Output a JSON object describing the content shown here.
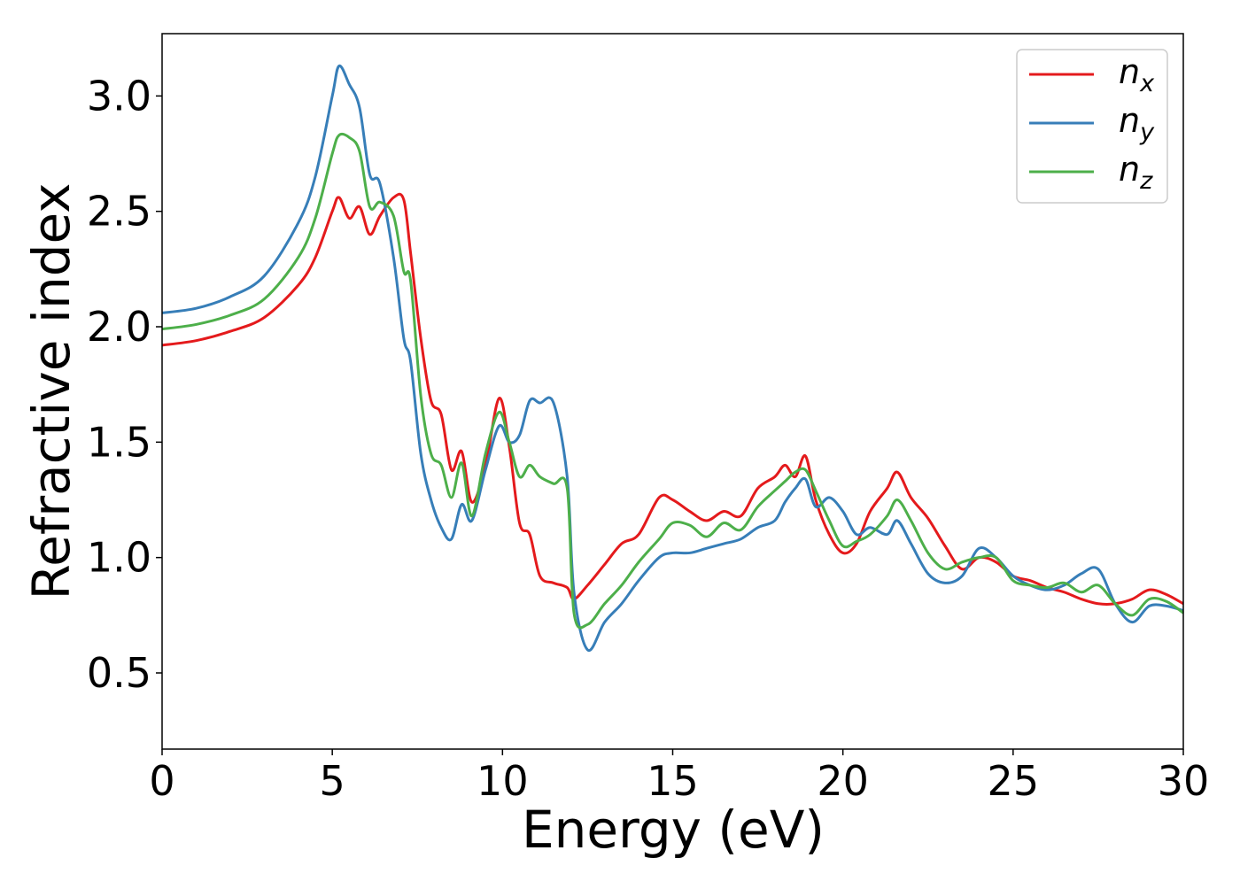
{
  "chart_data": {
    "type": "line",
    "xlabel": "Energy (eV)",
    "ylabel": "Refractive index",
    "xlim": [
      0,
      30
    ],
    "ylim": [
      0.17,
      3.27
    ],
    "xticks": [
      0,
      5,
      10,
      15,
      20,
      25,
      30
    ],
    "xtick_labels": [
      "0",
      "5",
      "10",
      "15",
      "20",
      "25",
      "30"
    ],
    "yticks": [
      0.5,
      1.0,
      1.5,
      2.0,
      2.5,
      3.0
    ],
    "ytick_labels": [
      "0.5",
      "1.0",
      "1.5",
      "2.0",
      "2.5",
      "3.0"
    ],
    "grid": false,
    "legend_position": "top-right",
    "series": [
      {
        "name": "n_x",
        "base": "n",
        "sub": "x",
        "color": "#e41a1c",
        "x": [
          0,
          1,
          2,
          3,
          4,
          4.5,
          5.0,
          5.2,
          5.5,
          5.8,
          6.1,
          6.4,
          6.8,
          7.1,
          7.3,
          7.6,
          7.9,
          8.2,
          8.5,
          8.8,
          9.1,
          9.5,
          9.9,
          10.2,
          10.5,
          10.8,
          11.1,
          11.5,
          11.9,
          12.1,
          12.5,
          13.0,
          13.5,
          14.0,
          14.6,
          15.0,
          15.5,
          16.0,
          16.5,
          17.0,
          17.5,
          18.0,
          18.3,
          18.6,
          18.9,
          19.2,
          19.6,
          20.0,
          20.4,
          20.8,
          21.3,
          21.6,
          22.0,
          22.5,
          23.0,
          23.5,
          24.0,
          24.5,
          25.0,
          25.5,
          26.0,
          26.5,
          27.0,
          27.5,
          28.0,
          28.5,
          29.0,
          29.5,
          30.0
        ],
        "y": [
          1.92,
          1.94,
          1.98,
          2.04,
          2.18,
          2.3,
          2.5,
          2.56,
          2.47,
          2.52,
          2.4,
          2.48,
          2.56,
          2.55,
          2.32,
          1.95,
          1.68,
          1.62,
          1.38,
          1.46,
          1.24,
          1.4,
          1.69,
          1.48,
          1.15,
          1.1,
          0.92,
          0.89,
          0.87,
          0.82,
          0.88,
          0.97,
          1.06,
          1.1,
          1.26,
          1.25,
          1.2,
          1.16,
          1.2,
          1.18,
          1.3,
          1.35,
          1.4,
          1.35,
          1.44,
          1.25,
          1.1,
          1.02,
          1.06,
          1.2,
          1.3,
          1.37,
          1.26,
          1.17,
          1.05,
          0.95,
          1.0,
          0.98,
          0.92,
          0.9,
          0.87,
          0.85,
          0.82,
          0.8,
          0.8,
          0.82,
          0.86,
          0.84,
          0.8
        ]
      },
      {
        "name": "n_y",
        "base": "n",
        "sub": "y",
        "color": "#377eb8",
        "x": [
          0,
          1,
          2,
          3,
          4,
          4.5,
          5.0,
          5.2,
          5.5,
          5.8,
          6.1,
          6.4,
          6.8,
          7.1,
          7.3,
          7.6,
          7.9,
          8.2,
          8.5,
          8.8,
          9.1,
          9.5,
          9.9,
          10.2,
          10.5,
          10.8,
          11.1,
          11.5,
          11.9,
          12.1,
          12.5,
          13.0,
          13.5,
          14.0,
          14.6,
          15.0,
          15.5,
          16.0,
          16.5,
          17.0,
          17.5,
          18.0,
          18.3,
          18.6,
          18.9,
          19.2,
          19.6,
          20.0,
          20.4,
          20.8,
          21.3,
          21.6,
          22.0,
          22.5,
          23.0,
          23.5,
          24.0,
          24.5,
          25.0,
          25.5,
          26.0,
          26.5,
          27.0,
          27.5,
          28.0,
          28.5,
          29.0,
          29.5,
          30.0
        ],
        "y": [
          2.06,
          2.08,
          2.13,
          2.22,
          2.45,
          2.65,
          3.0,
          3.13,
          3.05,
          2.95,
          2.66,
          2.62,
          2.3,
          1.95,
          1.85,
          1.45,
          1.25,
          1.13,
          1.08,
          1.23,
          1.16,
          1.38,
          1.57,
          1.5,
          1.53,
          1.68,
          1.67,
          1.67,
          1.35,
          0.85,
          0.6,
          0.72,
          0.8,
          0.9,
          1.0,
          1.02,
          1.02,
          1.04,
          1.06,
          1.08,
          1.13,
          1.16,
          1.24,
          1.3,
          1.34,
          1.22,
          1.26,
          1.2,
          1.1,
          1.13,
          1.1,
          1.16,
          1.06,
          0.93,
          0.89,
          0.92,
          1.04,
          1.0,
          0.92,
          0.88,
          0.86,
          0.88,
          0.93,
          0.95,
          0.8,
          0.72,
          0.79,
          0.79,
          0.77
        ]
      },
      {
        "name": "n_z",
        "base": "n",
        "sub": "z",
        "color": "#4daf4a",
        "x": [
          0,
          1,
          2,
          3,
          4,
          4.5,
          5.0,
          5.2,
          5.5,
          5.8,
          6.1,
          6.4,
          6.8,
          7.1,
          7.3,
          7.6,
          7.9,
          8.2,
          8.5,
          8.8,
          9.1,
          9.5,
          9.9,
          10.2,
          10.5,
          10.8,
          11.1,
          11.5,
          11.9,
          12.1,
          12.5,
          13.0,
          13.5,
          14.0,
          14.6,
          15.0,
          15.5,
          16.0,
          16.5,
          17.0,
          17.5,
          18.0,
          18.3,
          18.6,
          18.9,
          19.2,
          19.6,
          20.0,
          20.4,
          20.8,
          21.3,
          21.6,
          22.0,
          22.5,
          23.0,
          23.5,
          24.0,
          24.5,
          25.0,
          25.5,
          26.0,
          26.5,
          27.0,
          27.5,
          28.0,
          28.5,
          29.0,
          29.5,
          30.0
        ],
        "y": [
          1.99,
          2.01,
          2.05,
          2.12,
          2.3,
          2.47,
          2.75,
          2.83,
          2.82,
          2.76,
          2.52,
          2.54,
          2.48,
          2.24,
          2.2,
          1.7,
          1.45,
          1.4,
          1.26,
          1.41,
          1.18,
          1.45,
          1.63,
          1.5,
          1.35,
          1.4,
          1.35,
          1.32,
          1.3,
          0.76,
          0.71,
          0.8,
          0.88,
          0.98,
          1.08,
          1.15,
          1.14,
          1.09,
          1.15,
          1.12,
          1.22,
          1.29,
          1.33,
          1.37,
          1.38,
          1.29,
          1.16,
          1.05,
          1.07,
          1.1,
          1.18,
          1.25,
          1.16,
          1.02,
          0.95,
          0.98,
          1.0,
          1.0,
          0.9,
          0.88,
          0.87,
          0.89,
          0.85,
          0.88,
          0.8,
          0.75,
          0.82,
          0.81,
          0.76
        ]
      }
    ]
  }
}
